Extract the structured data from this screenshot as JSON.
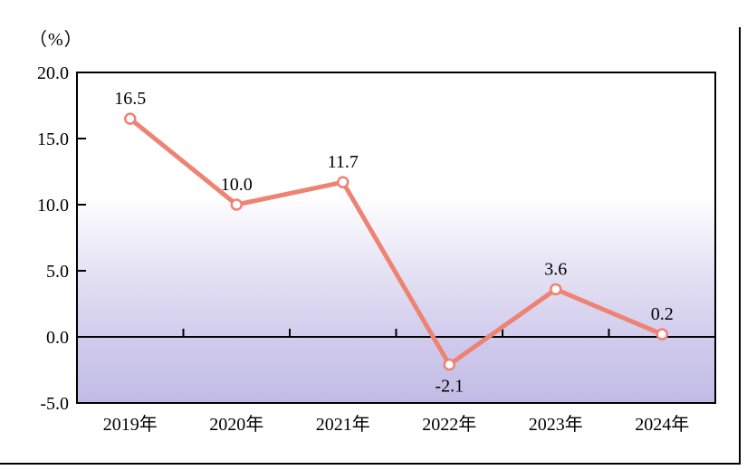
{
  "page": {
    "unit_label": "（%）"
  },
  "chart_data": {
    "type": "line",
    "title": "",
    "unit_label": "（%）",
    "categories": [
      "2019年",
      "2020年",
      "2021年",
      "2022年",
      "2023年",
      "2024年"
    ],
    "series": [
      {
        "name": "",
        "values": [
          16.5,
          10.0,
          11.7,
          -2.1,
          3.6,
          0.2
        ]
      }
    ],
    "data_labels": [
      "16.5",
      "10.0",
      "11.7",
      "-2.1",
      "3.6",
      "0.2"
    ],
    "label_positions": [
      "above",
      "above",
      "above",
      "below",
      "above",
      "above"
    ],
    "y_tick_labels": [
      "20.0",
      "15.0",
      "10.0",
      "5.0",
      "0.0",
      "-5.0"
    ],
    "y_tick_values": [
      20,
      15,
      10,
      5,
      0,
      -5
    ],
    "ylim": [
      -5,
      20
    ],
    "grid": false,
    "zero_line": true,
    "legend": "none",
    "line_color": "#ee8273",
    "marker": "open-circle",
    "marker_fill": "#ffffff",
    "axis_color": "#000000",
    "text_color": "#000000",
    "plot_bg_gradient": [
      "#ffffff",
      "#ffffff",
      "#e3e0f3",
      "#cfcaec",
      "#c2bce5"
    ]
  }
}
